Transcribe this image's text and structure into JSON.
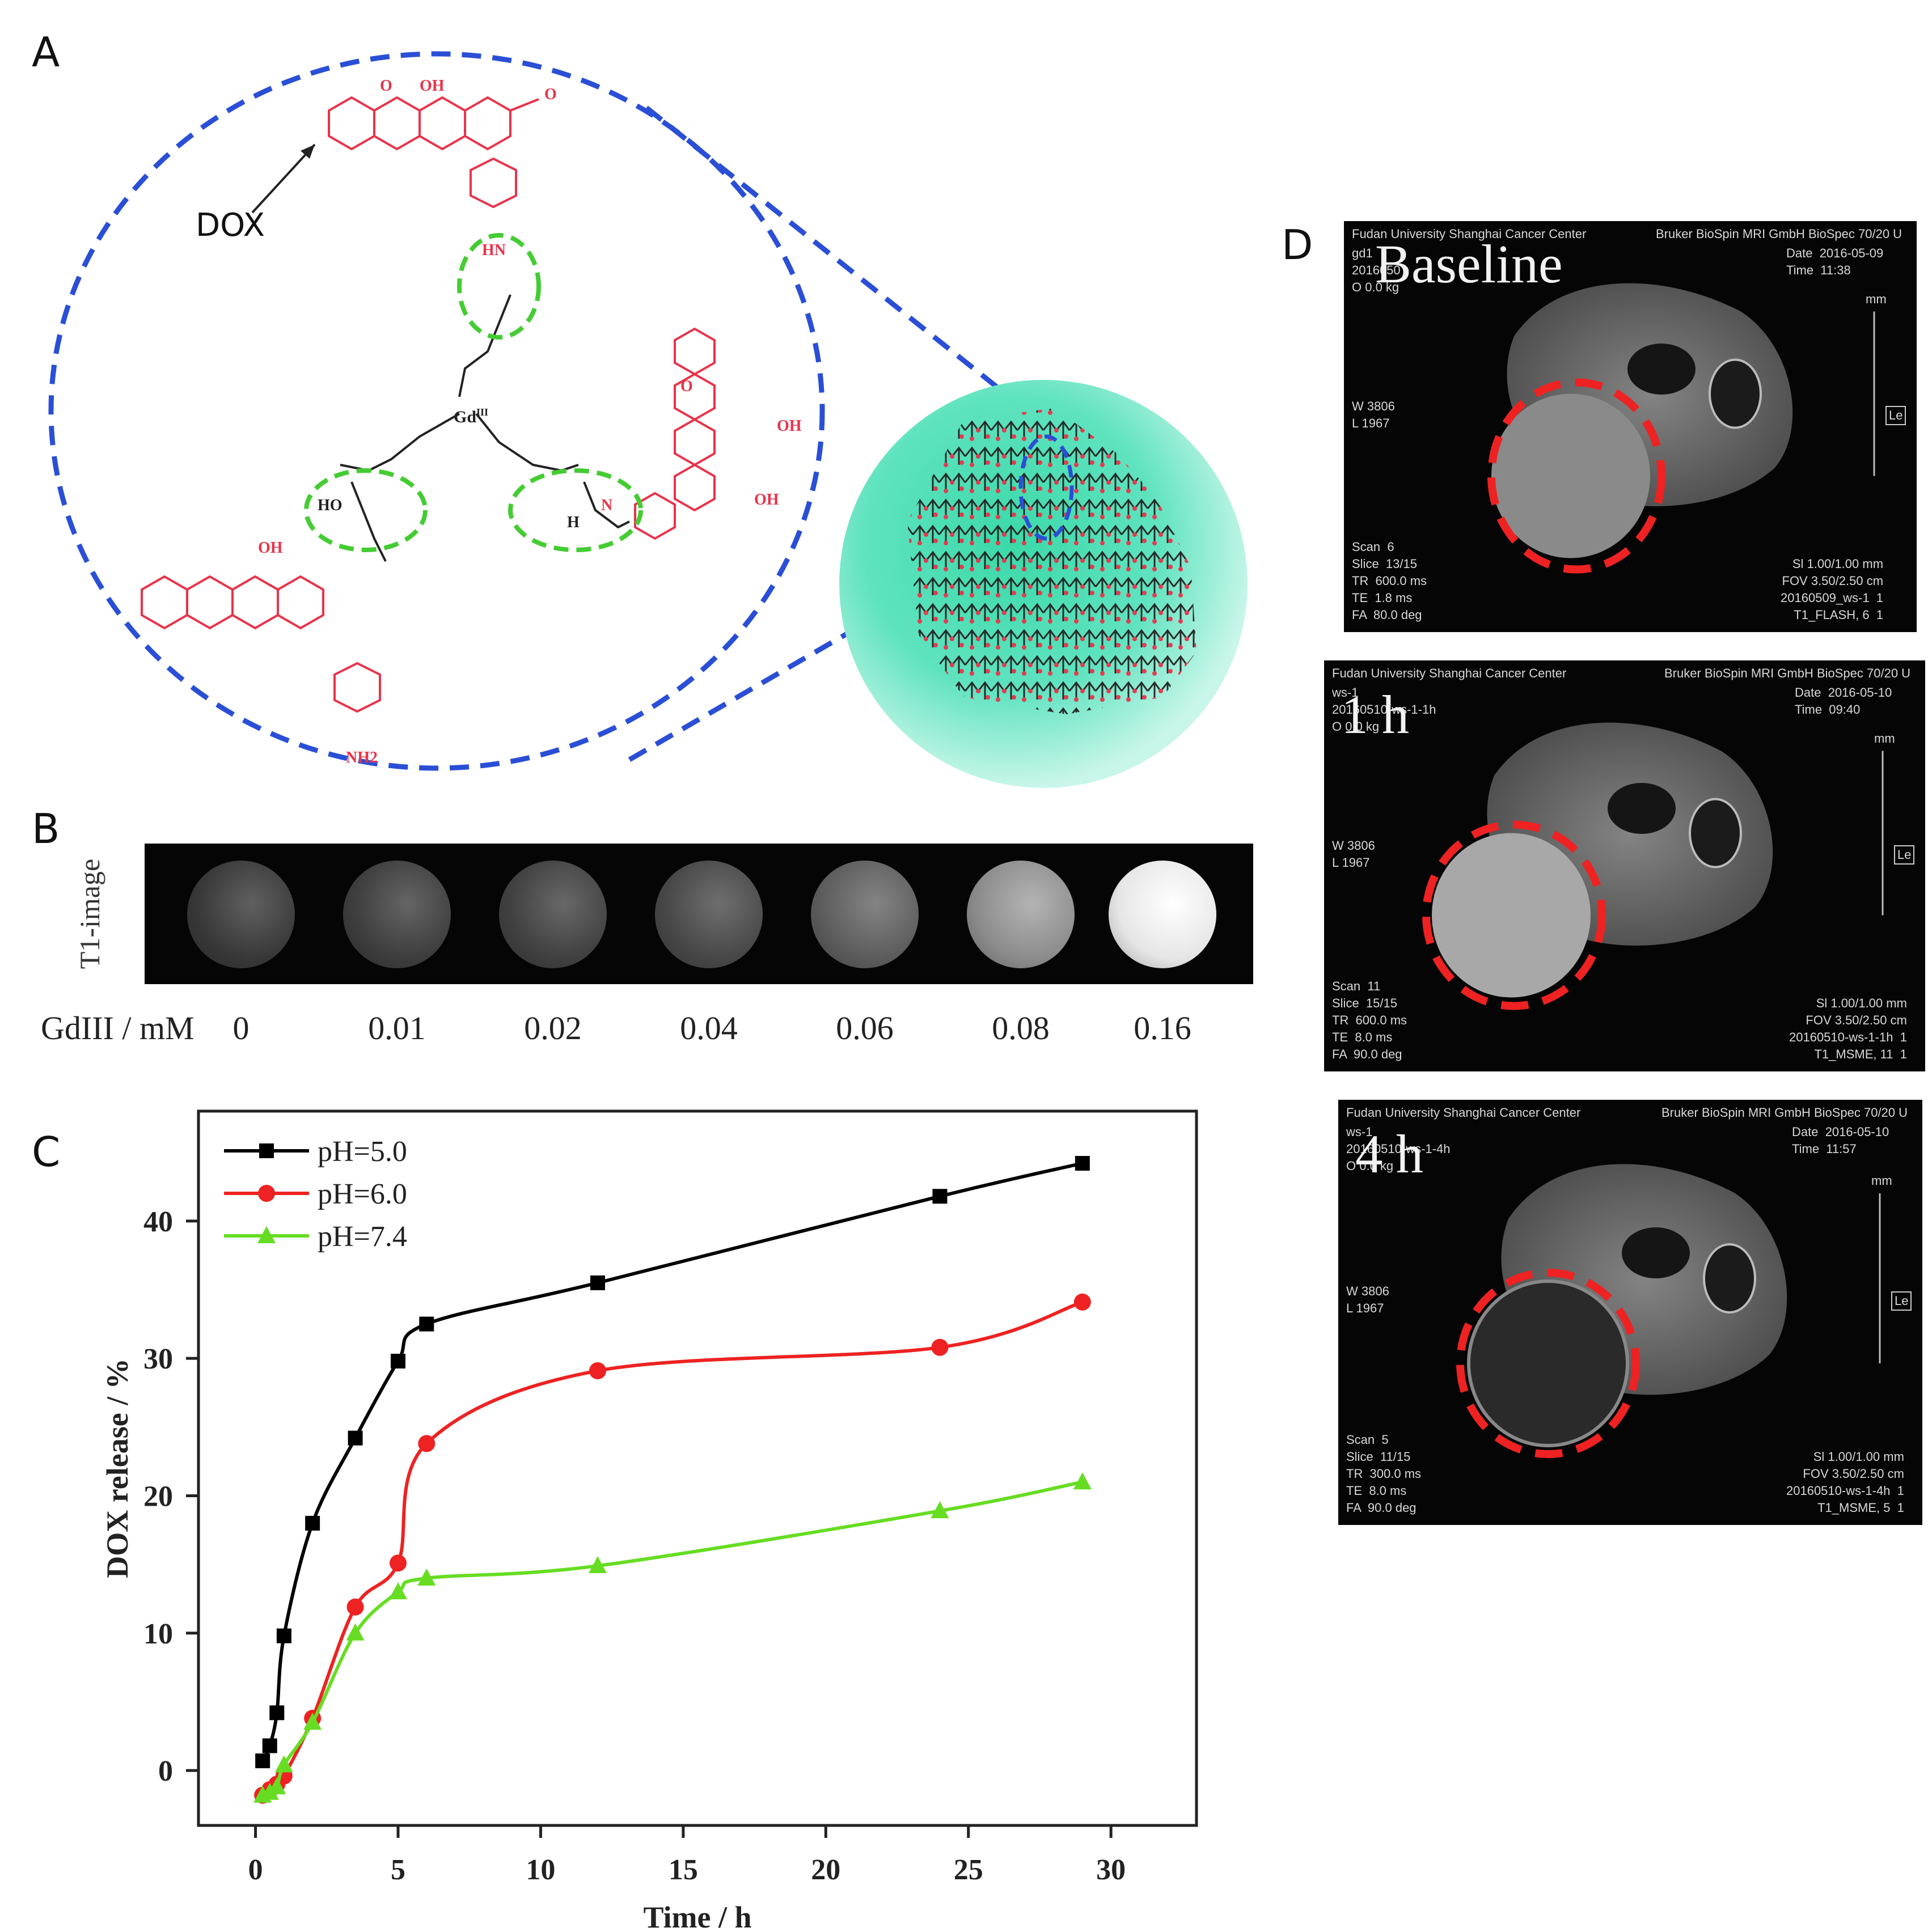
{
  "panels": {
    "a": "A",
    "b": "B",
    "c": "C",
    "d": "D"
  },
  "panel_a": {
    "dox_label": "DOX",
    "center_atom": "Gd",
    "center_atom_sup": "III",
    "groups": [
      "OH",
      "O",
      "HO",
      "H",
      "N",
      "HN",
      "NH2",
      "OH",
      "O",
      "OH",
      "OH",
      "O"
    ],
    "colors": {
      "dox": "#e8334a",
      "dashed_circle": "#2a4fd6",
      "hbond_ellipse": "#44cc33",
      "sphere": "#5fe3bf"
    }
  },
  "panel_b": {
    "row_title": "T1-image",
    "axis_label": "GdIII / mM",
    "concentrations": [
      "0",
      "0.01",
      "0.02",
      "0.04",
      "0.06",
      "0.08",
      "0.16"
    ],
    "brightness": [
      0.22,
      0.24,
      0.25,
      0.28,
      0.36,
      0.55,
      0.9
    ]
  },
  "chart_data": {
    "type": "line",
    "xlabel": "Time / h",
    "ylabel": "DOX release / %",
    "xlim": [
      -2,
      33
    ],
    "ylim": [
      -4,
      48
    ],
    "xticks": [
      0,
      5,
      10,
      15,
      20,
      25,
      30
    ],
    "yticks": [
      0,
      10,
      20,
      30,
      40
    ],
    "legend_position": "top-left",
    "series": [
      {
        "name": "pH=5.0",
        "color": "#000000",
        "marker": "square",
        "x": [
          0.25,
          0.5,
          0.75,
          1,
          2,
          3.5,
          5,
          6,
          12,
          24,
          29
        ],
        "y": [
          0.7,
          1.8,
          4.2,
          9.8,
          18,
          24.2,
          29.8,
          32.5,
          35.5,
          41.8,
          44.2
        ]
      },
      {
        "name": "pH=6.0",
        "color": "#ee2222",
        "marker": "circle",
        "x": [
          0.25,
          0.5,
          0.75,
          1,
          2,
          3.5,
          5,
          6,
          12,
          24,
          29
        ],
        "y": [
          -1.8,
          -1.4,
          -1.0,
          -0.4,
          3.8,
          11.9,
          15.1,
          23.8,
          29.1,
          30.8,
          34.1
        ]
      },
      {
        "name": "pH=7.4",
        "color": "#66dd22",
        "marker": "triangle",
        "x": [
          0.25,
          0.5,
          0.75,
          1,
          2,
          3.5,
          5,
          6,
          12,
          24,
          29
        ],
        "y": [
          -1.8,
          -1.6,
          -1.2,
          0.4,
          3.5,
          10.0,
          13.0,
          14.0,
          14.9,
          18.9,
          21.0
        ]
      }
    ]
  },
  "panel_d": {
    "scans": [
      {
        "label": "Baseline",
        "header_left": "Fudan University Shanghai Cancer Center",
        "header_right": "Bruker BioSpin MRI GmbH BioSpec 70/20 U",
        "left_top": "gd1\n2016050\nO 0.0 kg",
        "right_top": "Date  2016-05-09\nTime  11:38",
        "left_mid": "W 3806\nL 1967",
        "unit": "mm",
        "marker": "Le",
        "left_bottom": "Scan  6\nSlice  13/15\nTR  600.0 ms\nTE  1.8 ms\nFA  80.0 deg",
        "right_bottom": "Sl 1.00/1.00 mm\nFOV 3.50/2.50 cm\n20160509_ws-1  1\nT1_FLASH, 6  1"
      },
      {
        "label": "1 h",
        "header_left": "Fudan University Shanghai Cancer Center",
        "header_right": "Bruker BioSpin MRI GmbH BioSpec 70/20 U",
        "left_top": "ws-1\n20160510-ws-1-1h\nO 0.0 kg",
        "right_top": "Date  2016-05-10\nTime  09:40",
        "left_mid": "W 3806\nL 1967",
        "unit": "mm",
        "marker": "Le",
        "left_bottom": "Scan  11\nSlice  15/15\nTR  600.0 ms\nTE  8.0 ms\nFA  90.0 deg",
        "right_bottom": "Sl 1.00/1.00 mm\nFOV 3.50/2.50 cm\n20160510-ws-1-1h  1\nT1_MSME, 11  1"
      },
      {
        "label": "4 h",
        "header_left": "Fudan University Shanghai Cancer Center",
        "header_right": "Bruker BioSpin MRI GmbH BioSpec 70/20 U",
        "left_top": "ws-1\n20160510-ws-1-4h\nO 0.0 kg",
        "right_top": "Date  2016-05-10\nTime  11:57",
        "left_mid": "W 3806\nL 1967",
        "unit": "mm",
        "marker": "Le",
        "left_bottom": "Scan  5\nSlice  11/15\nTR  300.0 ms\nTE  8.0 ms\nFA  90.0 deg",
        "right_bottom": "Sl 1.00/1.00 mm\nFOV 3.50/2.50 cm\n20160510-ws-1-4h  1\nT1_MSME, 5  1"
      }
    ]
  }
}
